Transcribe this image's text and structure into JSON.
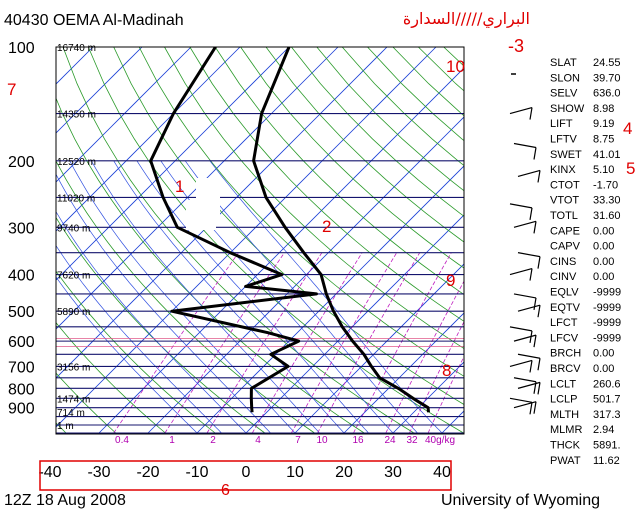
{
  "header": {
    "station": "40430 OEMA Al-Madinah",
    "arabic_note": "البراري/////السدارة",
    "red_mark": "-3"
  },
  "footer": {
    "time": "12Z 18 Aug 2008",
    "source": "University of Wyoming",
    "box_mark": "6"
  },
  "annotations": [
    "7",
    "10",
    "4",
    "5",
    "1",
    "2",
    "9",
    "8"
  ],
  "chart_data": {
    "type": "skew-t",
    "pressure_ticks": [
      100,
      200,
      300,
      400,
      500,
      600,
      700,
      800,
      900
    ],
    "temperature_ticks": [
      -40,
      -30,
      -20,
      -10,
      0,
      10,
      20,
      30,
      40
    ],
    "height_labels": [
      "16740 m",
      "14350 m",
      "12520 m",
      "11020 m",
      "9740 m",
      "7620 m",
      "5890 m",
      "3156 m",
      "1474 m",
      "714 m",
      "1 m"
    ],
    "mixing_ratio_labels": [
      "0.4",
      "1",
      "2",
      "4",
      "7",
      "10",
      "16",
      "24",
      "32",
      "40g/kg"
    ],
    "temperature_profile": [
      [
        925,
        33
      ],
      [
        900,
        32
      ],
      [
        850,
        27
      ],
      [
        800,
        22
      ],
      [
        750,
        16
      ],
      [
        700,
        12
      ],
      [
        650,
        8
      ],
      [
        600,
        3
      ],
      [
        550,
        -2
      ],
      [
        500,
        -7
      ],
      [
        450,
        -12
      ],
      [
        400,
        -17
      ],
      [
        350,
        -25
      ],
      [
        300,
        -34
      ],
      [
        250,
        -44
      ],
      [
        200,
        -54
      ],
      [
        150,
        -62
      ],
      [
        100,
        -70
      ]
    ],
    "dewpoint_profile": [
      [
        925,
        -3
      ],
      [
        900,
        -4
      ],
      [
        850,
        -6
      ],
      [
        800,
        -8
      ],
      [
        700,
        -5
      ],
      [
        650,
        -11
      ],
      [
        600,
        -8
      ],
      [
        570,
        -16
      ],
      [
        500,
        -40
      ],
      [
        450,
        -14
      ],
      [
        430,
        -30
      ],
      [
        400,
        -25
      ],
      [
        350,
        -40
      ],
      [
        300,
        -56
      ],
      [
        250,
        -65
      ],
      [
        200,
        -75
      ],
      [
        150,
        -80
      ],
      [
        100,
        -85
      ]
    ],
    "indices": [
      {
        "name": "SLAT",
        "value": "24.55"
      },
      {
        "name": "SLON",
        "value": "39.70"
      },
      {
        "name": "SELV",
        "value": "636.0"
      },
      {
        "name": "SHOW",
        "value": "8.98"
      },
      {
        "name": "LIFT",
        "value": "9.19"
      },
      {
        "name": "LFTV",
        "value": "8.75"
      },
      {
        "name": "SWET",
        "value": "41.01"
      },
      {
        "name": "KINX",
        "value": "5.10"
      },
      {
        "name": "CTOT",
        "value": "-1.70"
      },
      {
        "name": "VTOT",
        "value": "33.30"
      },
      {
        "name": "TOTL",
        "value": "31.60"
      },
      {
        "name": "CAPE",
        "value": "0.00"
      },
      {
        "name": "CAPV",
        "value": "0.00"
      },
      {
        "name": "CINS",
        "value": "0.00"
      },
      {
        "name": "CINV",
        "value": "0.00"
      },
      {
        "name": "EQLV",
        "value": "-9999"
      },
      {
        "name": "EQTV",
        "value": "-9999"
      },
      {
        "name": "LFCT",
        "value": "-9999"
      },
      {
        "name": "LFCV",
        "value": "-9999"
      },
      {
        "name": "BRCH",
        "value": "0.00"
      },
      {
        "name": "BRCV",
        "value": "0.00"
      },
      {
        "name": "LCLT",
        "value": "260.6"
      },
      {
        "name": "LCLP",
        "value": "501.7"
      },
      {
        "name": "MLTH",
        "value": "317.3"
      },
      {
        "name": "MLMR",
        "value": "2.94"
      },
      {
        "name": "THCK",
        "value": "5891."
      },
      {
        "name": "PWAT",
        "value": "11.62"
      }
    ]
  }
}
